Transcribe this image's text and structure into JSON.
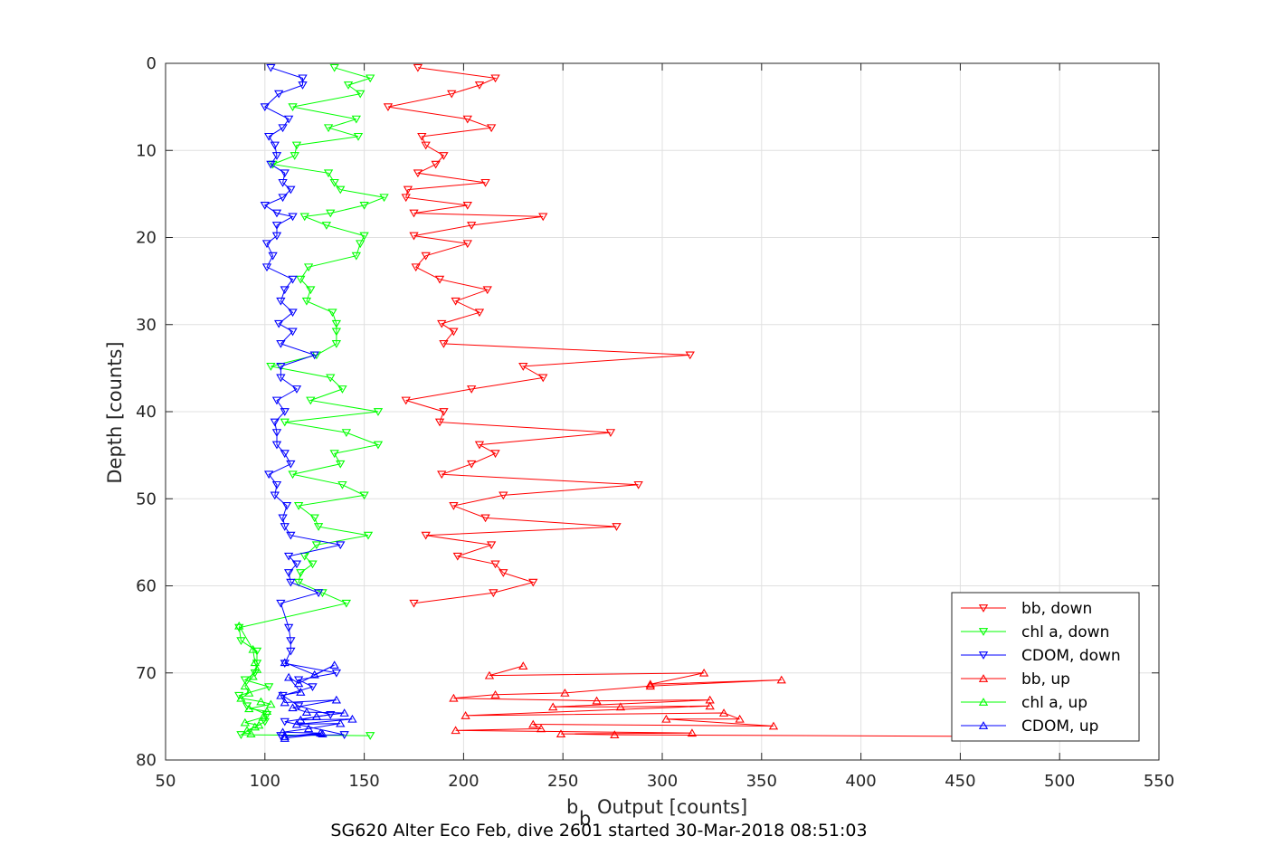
{
  "chart_data": {
    "type": "line",
    "title": "",
    "xlabel_main": "b",
    "xlabel_sub": "b",
    "xlabel_rest": "Output [counts]",
    "ylabel": "Depth [counts]",
    "caption": "SG620 Alter Eco Feb, dive 2601 started 30-Mar-2018 08:51:03",
    "xlim": [
      50,
      550
    ],
    "ylim": [
      0,
      80
    ],
    "y_reversed": true,
    "grid": true,
    "legend_position": "bottom-right",
    "xticks": [
      50,
      100,
      150,
      200,
      250,
      300,
      350,
      400,
      450,
      500,
      550
    ],
    "yticks": [
      0,
      10,
      20,
      30,
      40,
      50,
      60,
      70,
      80
    ],
    "series": [
      {
        "name": "bb, down",
        "color": "#ff0000",
        "marker": "down",
        "points": [
          [
            177,
            0.5
          ],
          [
            216,
            1.7
          ],
          [
            208,
            2.5
          ],
          [
            194,
            3.5
          ],
          [
            162,
            5.0
          ],
          [
            202,
            6.4
          ],
          [
            214,
            7.4
          ],
          [
            179,
            8.4
          ],
          [
            181,
            9.4
          ],
          [
            190,
            10.6
          ],
          [
            186,
            11.6
          ],
          [
            177,
            12.6
          ],
          [
            211,
            13.7
          ],
          [
            172,
            14.5
          ],
          [
            171,
            15.4
          ],
          [
            202,
            16.3
          ],
          [
            175,
            17.2
          ],
          [
            240,
            17.6
          ],
          [
            204,
            18.6
          ],
          [
            175,
            19.8
          ],
          [
            202,
            20.7
          ],
          [
            181,
            22.1
          ],
          [
            176,
            23.4
          ],
          [
            188,
            24.8
          ],
          [
            212,
            26.0
          ],
          [
            196,
            27.3
          ],
          [
            208,
            28.6
          ],
          [
            189,
            29.9
          ],
          [
            195,
            30.8
          ],
          [
            190,
            32.2
          ],
          [
            314,
            33.5
          ],
          [
            230,
            34.8
          ],
          [
            240,
            36.1
          ],
          [
            204,
            37.4
          ],
          [
            171,
            38.7
          ],
          [
            190,
            40.0
          ],
          [
            188,
            41.2
          ],
          [
            274,
            42.4
          ],
          [
            208,
            43.8
          ],
          [
            216,
            44.8
          ],
          [
            204,
            46.0
          ],
          [
            189,
            47.2
          ],
          [
            288,
            48.4
          ],
          [
            220,
            49.6
          ],
          [
            195,
            50.8
          ],
          [
            211,
            52.2
          ],
          [
            277,
            53.2
          ],
          [
            181,
            54.2
          ],
          [
            214,
            55.3
          ],
          [
            197,
            56.6
          ],
          [
            216,
            57.5
          ],
          [
            220,
            58.5
          ],
          [
            235,
            59.6
          ],
          [
            215,
            60.8
          ],
          [
            175,
            62.0
          ]
        ]
      },
      {
        "name": "chl a, down",
        "color": "#00ff00",
        "marker": "down",
        "points": [
          [
            135,
            0.5
          ],
          [
            153,
            1.7
          ],
          [
            142,
            2.5
          ],
          [
            148,
            3.5
          ],
          [
            114,
            5.0
          ],
          [
            146,
            6.4
          ],
          [
            132,
            7.4
          ],
          [
            147,
            8.4
          ],
          [
            116,
            9.4
          ],
          [
            115,
            10.6
          ],
          [
            104,
            11.6
          ],
          [
            132,
            12.6
          ],
          [
            135,
            13.7
          ],
          [
            138,
            14.5
          ],
          [
            160,
            15.4
          ],
          [
            150,
            16.3
          ],
          [
            133,
            17.2
          ],
          [
            120,
            17.6
          ],
          [
            131,
            18.6
          ],
          [
            150,
            19.8
          ],
          [
            148,
            20.7
          ],
          [
            146,
            22.1
          ],
          [
            122,
            23.4
          ],
          [
            118,
            24.8
          ],
          [
            123,
            26.0
          ],
          [
            121,
            27.3
          ],
          [
            134,
            28.6
          ],
          [
            136,
            29.9
          ],
          [
            136,
            30.8
          ],
          [
            136,
            32.2
          ],
          [
            126,
            33.5
          ],
          [
            103,
            34.8
          ],
          [
            133,
            36.1
          ],
          [
            139,
            37.4
          ],
          [
            123,
            38.7
          ],
          [
            157,
            40.0
          ],
          [
            110,
            41.2
          ],
          [
            141,
            42.4
          ],
          [
            157,
            43.8
          ],
          [
            135,
            44.8
          ],
          [
            138,
            46.0
          ],
          [
            114,
            47.2
          ],
          [
            139,
            48.4
          ],
          [
            150,
            49.6
          ],
          [
            117,
            50.8
          ],
          [
            125,
            52.2
          ],
          [
            127,
            53.2
          ],
          [
            152,
            54.2
          ],
          [
            126,
            55.3
          ],
          [
            120,
            56.6
          ],
          [
            124,
            57.5
          ],
          [
            118,
            58.5
          ],
          [
            117,
            59.6
          ],
          [
            129,
            60.8
          ],
          [
            141,
            62.0
          ],
          [
            87,
            64.8
          ],
          [
            88,
            66.3
          ],
          [
            96,
            67.5
          ],
          [
            96,
            68.9
          ],
          [
            95,
            70.0
          ],
          [
            90,
            70.8
          ],
          [
            102,
            71.6
          ],
          [
            87,
            72.6
          ],
          [
            91,
            73.8
          ],
          [
            101,
            74.8
          ],
          [
            100,
            75.6
          ],
          [
            88,
            77.1
          ],
          [
            153,
            77.2
          ]
        ]
      },
      {
        "name": "CDOM, down",
        "color": "#0000ff",
        "marker": "down",
        "points": [
          [
            103,
            0.5
          ],
          [
            119,
            1.7
          ],
          [
            119,
            2.5
          ],
          [
            107,
            3.5
          ],
          [
            100,
            5.0
          ],
          [
            112,
            6.4
          ],
          [
            109,
            7.4
          ],
          [
            102,
            8.4
          ],
          [
            105,
            9.4
          ],
          [
            106,
            10.6
          ],
          [
            103,
            11.6
          ],
          [
            110,
            12.6
          ],
          [
            109,
            13.7
          ],
          [
            113,
            14.5
          ],
          [
            109,
            15.4
          ],
          [
            100,
            16.3
          ],
          [
            106,
            17.2
          ],
          [
            114,
            17.6
          ],
          [
            106,
            18.6
          ],
          [
            106,
            19.8
          ],
          [
            101,
            20.7
          ],
          [
            104,
            22.1
          ],
          [
            101,
            23.4
          ],
          [
            114,
            24.8
          ],
          [
            110,
            26.0
          ],
          [
            108,
            27.3
          ],
          [
            114,
            28.6
          ],
          [
            107,
            29.9
          ],
          [
            114,
            30.8
          ],
          [
            108,
            32.2
          ],
          [
            125,
            33.5
          ],
          [
            108,
            34.8
          ],
          [
            108,
            36.1
          ],
          [
            116,
            37.4
          ],
          [
            106,
            38.7
          ],
          [
            110,
            40.0
          ],
          [
            105,
            41.2
          ],
          [
            106,
            42.4
          ],
          [
            106,
            43.8
          ],
          [
            110,
            44.8
          ],
          [
            113,
            46.0
          ],
          [
            102,
            47.2
          ],
          [
            106,
            48.4
          ],
          [
            105,
            49.6
          ],
          [
            111,
            50.8
          ],
          [
            109,
            52.2
          ],
          [
            110,
            53.2
          ],
          [
            113,
            54.2
          ],
          [
            138,
            55.3
          ],
          [
            112,
            56.6
          ],
          [
            116,
            57.5
          ],
          [
            112,
            58.5
          ],
          [
            113,
            59.6
          ],
          [
            127,
            60.8
          ],
          [
            108,
            62.0
          ],
          [
            112,
            64.8
          ],
          [
            113,
            66.3
          ],
          [
            113,
            67.5
          ],
          [
            110,
            68.9
          ],
          [
            136,
            70.0
          ],
          [
            117,
            70.8
          ],
          [
            124,
            71.6
          ],
          [
            109,
            72.6
          ],
          [
            117,
            73.8
          ],
          [
            133,
            74.8
          ],
          [
            110,
            75.6
          ],
          [
            140,
            77.1
          ],
          [
            108,
            77.2
          ]
        ]
      },
      {
        "name": "bb, up",
        "color": "#ff0000",
        "marker": "up",
        "points": [
          [
            230,
            69.2
          ],
          [
            213,
            70.3
          ],
          [
            321,
            70.0
          ],
          [
            294,
            71.3
          ],
          [
            360,
            70.8
          ],
          [
            294,
            71.5
          ],
          [
            251,
            72.3
          ],
          [
            216,
            72.5
          ],
          [
            195,
            72.9
          ],
          [
            267,
            73.2
          ],
          [
            324,
            73.1
          ],
          [
            245,
            73.9
          ],
          [
            279,
            73.9
          ],
          [
            324,
            73.8
          ],
          [
            201,
            74.9
          ],
          [
            331,
            74.6
          ],
          [
            339,
            75.3
          ],
          [
            302,
            75.3
          ],
          [
            356,
            76.1
          ],
          [
            235,
            75.9
          ],
          [
            239,
            76.4
          ],
          [
            196,
            76.6
          ],
          [
            315,
            76.9
          ],
          [
            249,
            77.0
          ],
          [
            276,
            77.1
          ],
          [
            475,
            77.3
          ]
        ]
      },
      {
        "name": "chl a, up",
        "color": "#00ff00",
        "marker": "up",
        "points": [
          [
            87,
            64.6
          ],
          [
            94,
            67.3
          ],
          [
            95,
            68.8
          ],
          [
            96,
            69.6
          ],
          [
            94,
            70.4
          ],
          [
            90,
            71.5
          ],
          [
            92,
            72.3
          ],
          [
            88,
            72.9
          ],
          [
            98,
            73.3
          ],
          [
            103,
            73.6
          ],
          [
            92,
            74.1
          ],
          [
            101,
            74.4
          ],
          [
            99,
            75.1
          ],
          [
            90,
            75.7
          ],
          [
            97,
            76.0
          ],
          [
            95,
            76.2
          ],
          [
            91,
            76.6
          ],
          [
            93,
            77.0
          ]
        ]
      },
      {
        "name": "CDOM, up",
        "color": "#0000ff",
        "marker": "up",
        "points": [
          [
            110,
            68.8
          ],
          [
            125,
            70.2
          ],
          [
            135,
            69.1
          ],
          [
            117,
            71.2
          ],
          [
            112,
            70.5
          ],
          [
            118,
            72.2
          ],
          [
            108,
            72.6
          ],
          [
            110,
            73.4
          ],
          [
            136,
            73.1
          ],
          [
            114,
            74.0
          ],
          [
            121,
            74.5
          ],
          [
            140,
            74.6
          ],
          [
            126,
            75.0
          ],
          [
            118,
            75.4
          ],
          [
            144,
            75.3
          ],
          [
            116,
            75.9
          ],
          [
            138,
            75.8
          ],
          [
            122,
            76.4
          ],
          [
            109,
            76.8
          ],
          [
            128,
            76.9
          ],
          [
            110,
            77.3
          ],
          [
            129,
            77.0
          ],
          [
            110,
            77.5
          ]
        ]
      }
    ]
  }
}
